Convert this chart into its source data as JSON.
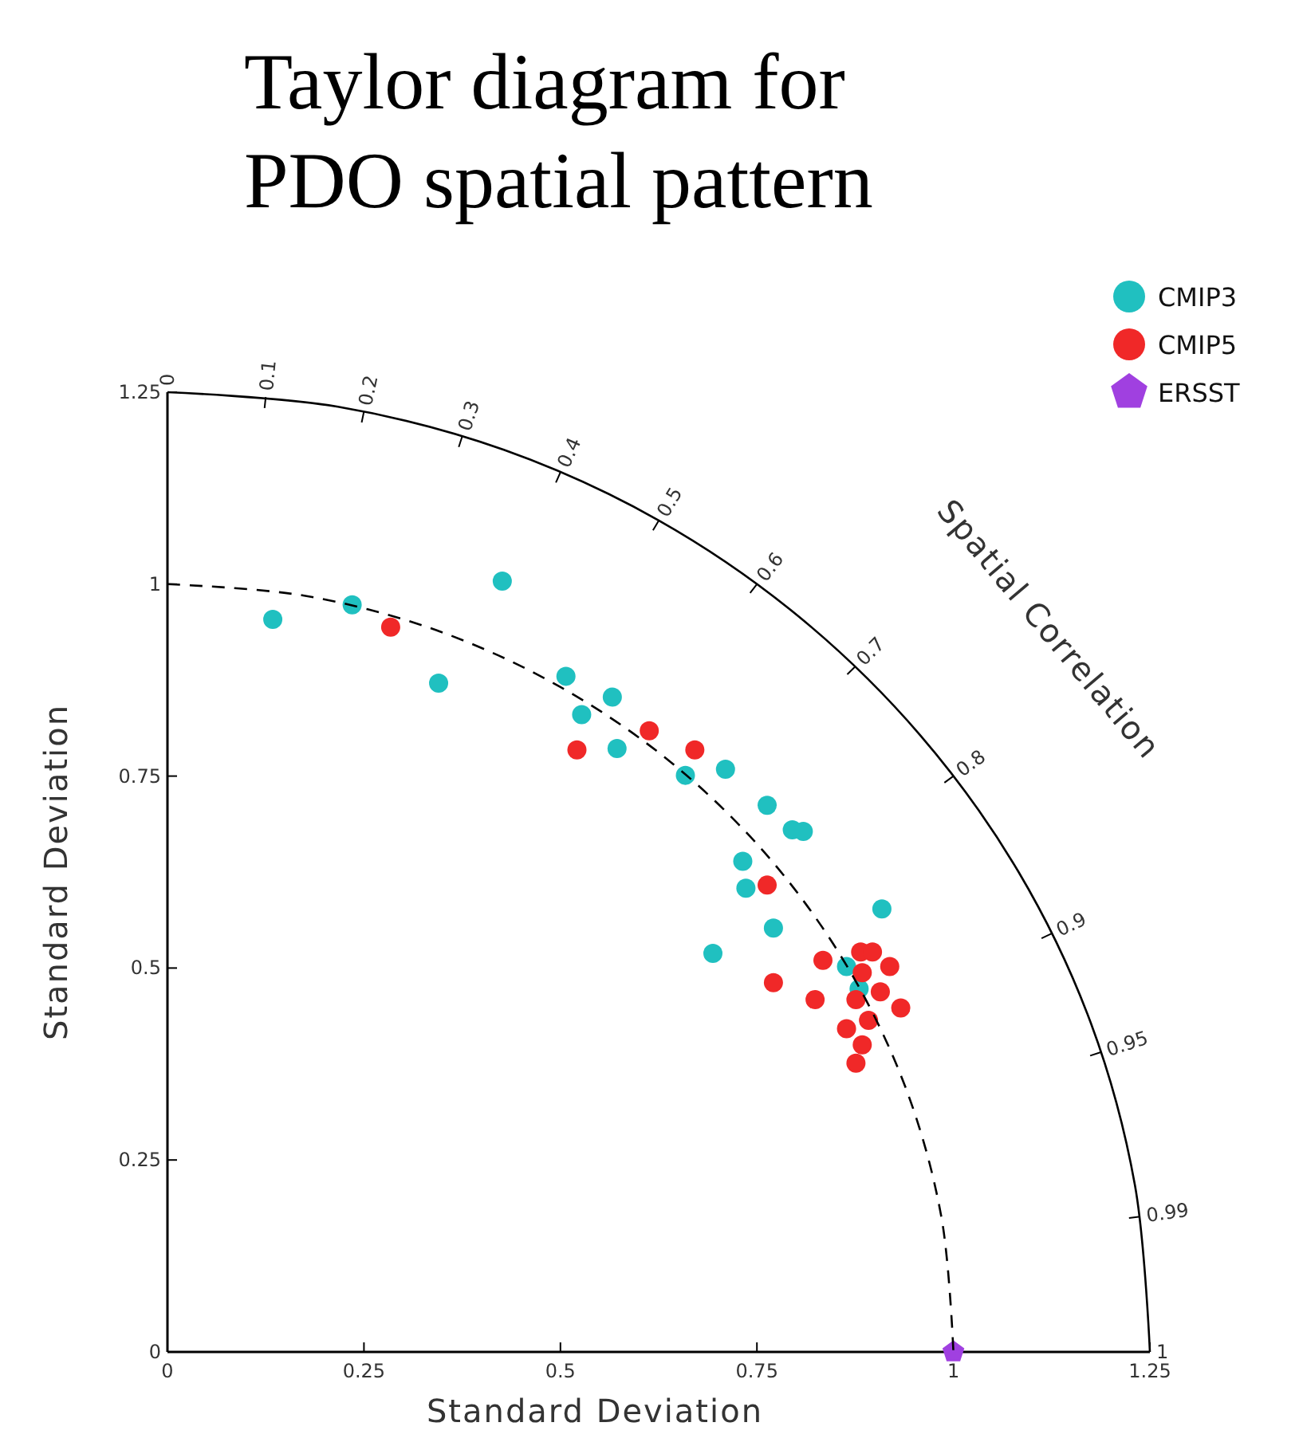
{
  "chart_data": {
    "type": "scatter",
    "title": "Taylor diagram for PDO spatial pattern",
    "xlabel": "Standard Deviation",
    "ylabel": "Standard Deviation",
    "xlim": [
      0,
      1.25
    ],
    "ylim": [
      0,
      1.25
    ],
    "xticks": [
      0,
      0.25,
      0.5,
      0.75,
      1,
      1.25
    ],
    "yticks": [
      0,
      0.25,
      0.5,
      0.75,
      1,
      1.25
    ],
    "grid": false,
    "legend": "top right",
    "series": [
      {
        "name": "CMIP3",
        "color": "#20c0c0",
        "marker": "circle",
        "x": [
          0.426,
          0.345,
          0.507,
          0.527,
          0.566,
          0.572,
          0.659,
          0.71,
          0.763,
          0.795,
          0.809,
          0.732,
          0.736,
          0.771,
          0.694,
          0.909,
          0.864,
          0.88,
          0.134,
          0.235
        ],
        "values": [
          1.004,
          0.871,
          0.88,
          0.83,
          0.853,
          0.786,
          0.751,
          0.759,
          0.712,
          0.68,
          0.678,
          0.639,
          0.604,
          0.552,
          0.519,
          0.577,
          0.502,
          0.473,
          0.954,
          0.973
        ]
      },
      {
        "name": "CMIP5",
        "color": "#f02828",
        "marker": "circle",
        "x": [
          0.521,
          0.613,
          0.671,
          0.763,
          0.771,
          0.834,
          0.824,
          0.882,
          0.897,
          0.919,
          0.884,
          0.876,
          0.907,
          0.892,
          0.933,
          0.864,
          0.884,
          0.876,
          0.284
        ],
        "values": [
          0.784,
          0.809,
          0.784,
          0.608,
          0.481,
          0.51,
          0.459,
          0.521,
          0.521,
          0.502,
          0.494,
          0.459,
          0.469,
          0.432,
          0.448,
          0.421,
          0.4,
          0.376,
          0.944
        ]
      },
      {
        "name": "ERSST",
        "color": "#a040e0",
        "marker": "diamond",
        "x": [
          1
        ],
        "values": [
          0
        ]
      },
      {
        "type": "line",
        "color": "#000000",
        "line_style": "solid",
        "marker": "none",
        "x": [
          0,
          0.217,
          0.428,
          0.625,
          0.803,
          0.958,
          1.083,
          1.175,
          1.231,
          1.25
        ],
        "values": [
          1.25,
          1.231,
          1.175,
          1.083,
          0.958,
          0.803,
          0.625,
          0.428,
          0.217,
          0
        ]
      },
      {
        "type": "line",
        "color": "#000000",
        "line_style": "dashed",
        "marker": "none",
        "x": [
          0,
          0.174,
          0.342,
          0.5,
          0.643,
          0.766,
          0.866,
          0.94,
          0.985,
          1
        ],
        "values": [
          1,
          0.985,
          0.94,
          0.866,
          0.766,
          0.643,
          0.5,
          0.342,
          0.174,
          0
        ]
      }
    ],
    "annotations": [
      "Spatial Correlation",
      "0",
      "0.1",
      "0.2",
      "0.3",
      "0.4",
      "0.5",
      "0.6",
      "0.7",
      "0.8",
      "0.9",
      "0.95",
      "0.99",
      "1"
    ]
  }
}
